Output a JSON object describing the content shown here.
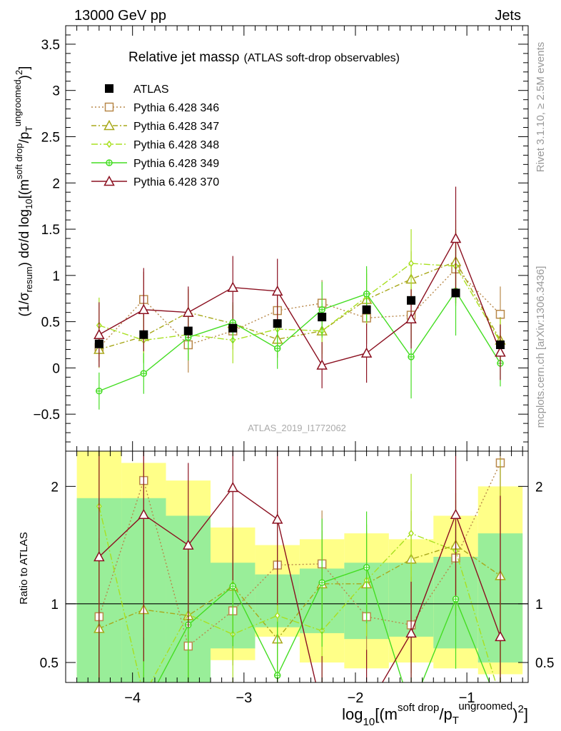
{
  "header": {
    "left": "13000 GeV pp",
    "right": "Jets"
  },
  "side_labels": {
    "rivet": "Rivet 3.1.10, ≥ 2.5M events",
    "mcplots": "mcplots.cern.ch [arXiv:1306.3436]"
  },
  "chart_data": {
    "type": "line",
    "title": "Relative jet massρ",
    "title_note": "(ATLAS soft-drop observables)",
    "watermark": "ATLAS_2019_I1772062",
    "xlabel": "log10[(m^soft drop/pT^ungroomed)^2]",
    "ylabel": "(1/σresum) dσ/d log10[(m^soft drop/pT^ungroomed)^2]",
    "ratio_ylabel": "Ratio to ATLAS",
    "xlim": [
      -4.6,
      -0.45
    ],
    "ylim": [
      -0.9,
      3.7
    ],
    "ratio_ylim": [
      0.33,
      2.3
    ],
    "x_ticks": [
      "−4",
      "−3",
      "−2",
      "−1"
    ],
    "x_tick_values": [
      -4,
      -3,
      -2,
      -1
    ],
    "y_ticks": [
      "−0.5",
      "0",
      "0.5",
      "1",
      "1.5",
      "2",
      "2.5",
      "3",
      "3.5"
    ],
    "y_tick_values": [
      -0.5,
      0,
      0.5,
      1,
      1.5,
      2,
      2.5,
      3,
      3.5
    ],
    "ratio_ticks": [
      "0.5",
      "1",
      "2"
    ],
    "ratio_tick_values": [
      0.5,
      1,
      2
    ],
    "x": [
      -4.3,
      -3.9,
      -3.5,
      -3.1,
      -2.7,
      -2.3,
      -1.9,
      -1.5,
      -1.1,
      -0.7
    ],
    "bin_edges": [
      -4.5,
      -4.1,
      -3.7,
      -3.3,
      -2.9,
      -2.5,
      -2.1,
      -1.7,
      -1.3,
      -0.9,
      -0.5
    ],
    "data": {
      "name": "ATLAS",
      "values": [
        0.26,
        0.36,
        0.4,
        0.43,
        0.48,
        0.55,
        0.63,
        0.73,
        0.81,
        0.25
      ]
    },
    "ratio_bands": {
      "stat_lo": [
        0.2,
        0.2,
        0.2,
        0.62,
        0.8,
        0.75,
        0.7,
        0.72,
        0.62,
        0.5
      ],
      "stat_hi": [
        1.9,
        1.9,
        1.75,
        1.35,
        1.25,
        1.3,
        1.35,
        1.35,
        1.4,
        1.6
      ],
      "tot_lo": [
        0.2,
        0.2,
        0.42,
        0.52,
        0.72,
        0.5,
        0.45,
        0.5,
        0.45,
        0.4
      ],
      "tot_hi": [
        2.3,
        2.2,
        2.05,
        1.65,
        1.5,
        1.55,
        1.6,
        1.55,
        1.75,
        2.0
      ]
    },
    "series": [
      {
        "name": "Pythia 6.428 346",
        "color": "#b8884a",
        "dash": "2,3",
        "marker": "square-open",
        "values": [
          0.22,
          0.74,
          0.25,
          0.4,
          0.62,
          0.7,
          0.54,
          0.57,
          1.07,
          0.58
        ],
        "errors": [
          0.15,
          0.3,
          0.3,
          0.2,
          0.22,
          0.25,
          0.28,
          0.3,
          0.4,
          0.3
        ],
        "ratio": [
          0.89,
          2.05,
          0.64,
          0.94,
          1.33,
          1.34,
          0.89,
          0.82,
          1.39,
          2.2
        ]
      },
      {
        "name": "Pythia 6.428 347",
        "color": "#a8a81a",
        "dash": "7,3,2,3",
        "marker": "triangle-open",
        "values": [
          0.2,
          0.34,
          0.6,
          0.48,
          0.31,
          0.4,
          0.74,
          0.96,
          1.15,
          0.3
        ],
        "errors": [
          0.2,
          0.28,
          0.25,
          0.2,
          0.2,
          0.25,
          0.28,
          0.3,
          0.45,
          0.25
        ],
        "ratio": [
          0.79,
          0.95,
          0.9,
          1.15,
          0.7,
          1.17,
          1.17,
          1.38,
          1.5,
          1.24
        ]
      },
      {
        "name": "Pythia 6.428 348",
        "color": "#a8e020",
        "dash": "9,3,2,3",
        "marker": "diamond-open",
        "values": [
          0.46,
          0.3,
          0.36,
          0.3,
          0.42,
          0.4,
          0.77,
          1.13,
          1.1,
          0.28
        ],
        "errors": [
          0.3,
          0.25,
          0.25,
          0.25,
          0.25,
          0.3,
          0.3,
          0.37,
          0.4,
          0.25
        ],
        "ratio": [
          1.83,
          0.22,
          0.91,
          0.74,
          0.9,
          0.77,
          1.2,
          1.6,
          1.45,
          0.2
        ]
      },
      {
        "name": "Pythia 6.428 349",
        "color": "#44dd22",
        "dash": "",
        "marker": "circle-cross",
        "values": [
          -0.25,
          -0.06,
          0.33,
          0.49,
          0.21,
          0.63,
          0.8,
          0.12,
          0.83,
          0.05
        ],
        "errors": [
          0.2,
          0.22,
          0.25,
          0.22,
          0.22,
          0.3,
          0.3,
          0.45,
          0.48,
          0.25
        ],
        "ratio": [
          0.1,
          0.1,
          0.82,
          1.15,
          0.39,
          1.18,
          1.31,
          0.1,
          1.04,
          0.1
        ]
      },
      {
        "name": "Pythia 6.428 370",
        "color": "#8b1020",
        "dash": "",
        "marker": "triangle-open",
        "values": [
          0.36,
          0.63,
          0.6,
          0.87,
          0.83,
          0.03,
          0.16,
          0.53,
          1.4,
          0.17
        ],
        "errors": [
          0.35,
          0.45,
          0.28,
          0.34,
          0.35,
          0.25,
          0.32,
          0.32,
          0.56,
          0.3
        ],
        "ratio": [
          1.4,
          1.76,
          1.5,
          1.99,
          1.72,
          0.1,
          0.1,
          0.75,
          1.76,
          0.72
        ]
      }
    ]
  }
}
